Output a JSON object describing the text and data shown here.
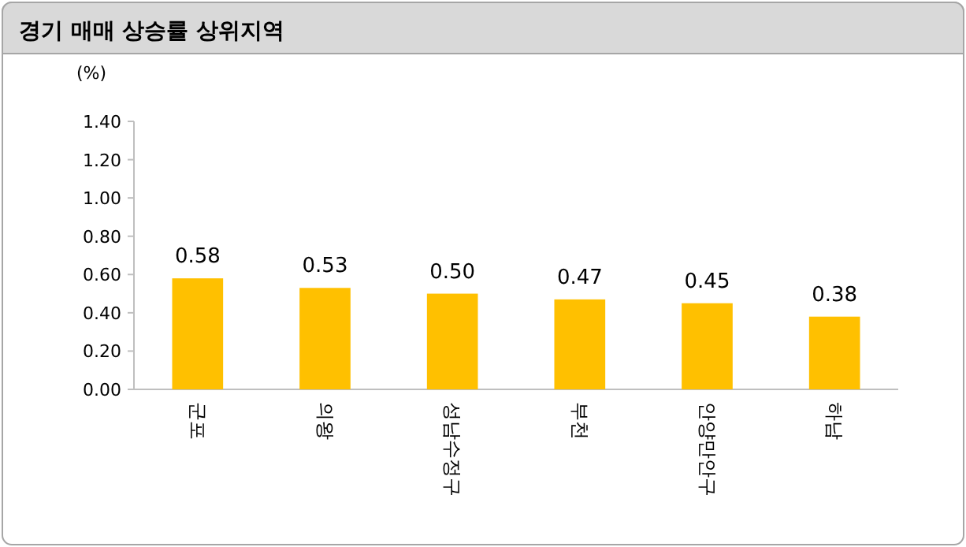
{
  "chart_data": {
    "type": "bar",
    "title": "경기 매매 상승률 상위지역",
    "ylabel": "(%)",
    "categories": [
      "군포",
      "의왕",
      "성남수정구",
      "부천",
      "안양만안구",
      "하남"
    ],
    "values": [
      0.58,
      0.53,
      0.5,
      0.47,
      0.45,
      0.38
    ],
    "value_labels": [
      "0.58",
      "0.53",
      "0.50",
      "0.47",
      "0.45",
      "0.38"
    ],
    "color": "#ffc000",
    "ylim": [
      0,
      1.4
    ],
    "yticks": [
      {
        "value": 0,
        "label": "0.00"
      },
      {
        "value": 0.2,
        "label": "0.20"
      },
      {
        "value": 0.4,
        "label": "0.40"
      },
      {
        "value": 0.6,
        "label": "0.60"
      },
      {
        "value": 0.8,
        "label": "0.80"
      },
      {
        "value": 1,
        "label": "1.00"
      },
      {
        "value": 1.2,
        "label": "1.20"
      },
      {
        "value": 1.4,
        "label": "1.40"
      }
    ],
    "grid": false
  }
}
